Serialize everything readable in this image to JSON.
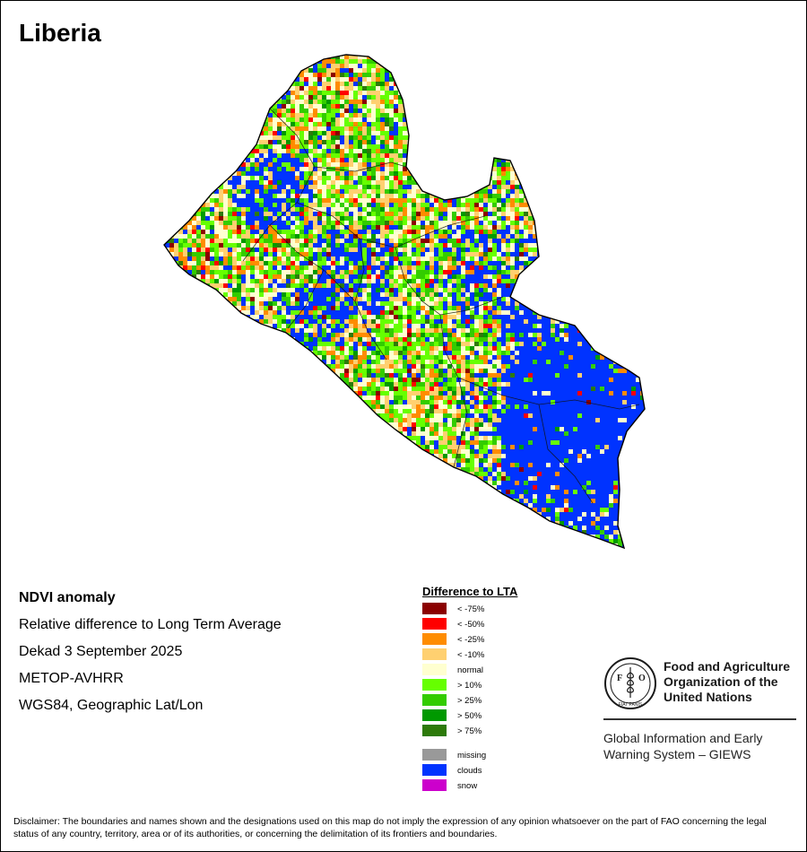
{
  "map_title": "Liberia",
  "meta": {
    "heading": "NDVI anomaly",
    "line1": "Relative difference to Long Term Average",
    "line2": "Dekad 3 September 2025",
    "line3": "METOP-AVHRR",
    "line4": "WGS84, Geographic Lat/Lon"
  },
  "legend": {
    "title": "Difference to LTA",
    "classes": [
      {
        "label": "< -75%",
        "color": "#8b0000"
      },
      {
        "label": "< -50%",
        "color": "#ff0000"
      },
      {
        "label": "< -25%",
        "color": "#ff8c00"
      },
      {
        "label": "< -10%",
        "color": "#ffd070"
      },
      {
        "label": "normal",
        "color": "#ffffd0"
      },
      {
        "label": "> 10%",
        "color": "#66ff00"
      },
      {
        "label": "> 25%",
        "color": "#33cc00"
      },
      {
        "label": "> 50%",
        "color": "#009900"
      },
      {
        "label": "> 75%",
        "color": "#2d7a0a"
      }
    ],
    "other": [
      {
        "label": "missing",
        "color": "#999999"
      },
      {
        "label": "clouds",
        "color": "#0033ff"
      },
      {
        "label": "snow",
        "color": "#cc00cc"
      }
    ]
  },
  "org": {
    "logo_letters": "FAO",
    "logo_motto": "FIAT PANIS",
    "name_line1": "Food and Agriculture",
    "name_line2": "Organization of the",
    "name_line3": "United Nations",
    "system_line1": "Global Information and Early",
    "system_line2": "Warning System – GIEWS"
  },
  "disclaimer": "Disclaimer: The boundaries and names shown and the designations used on this map do not imply the expression of any opinion whatsoever on the part of FAO concerning the legal status of any country, territory, area or of its authorities, or concerning the delimitation of its frontiers and boundaries."
}
